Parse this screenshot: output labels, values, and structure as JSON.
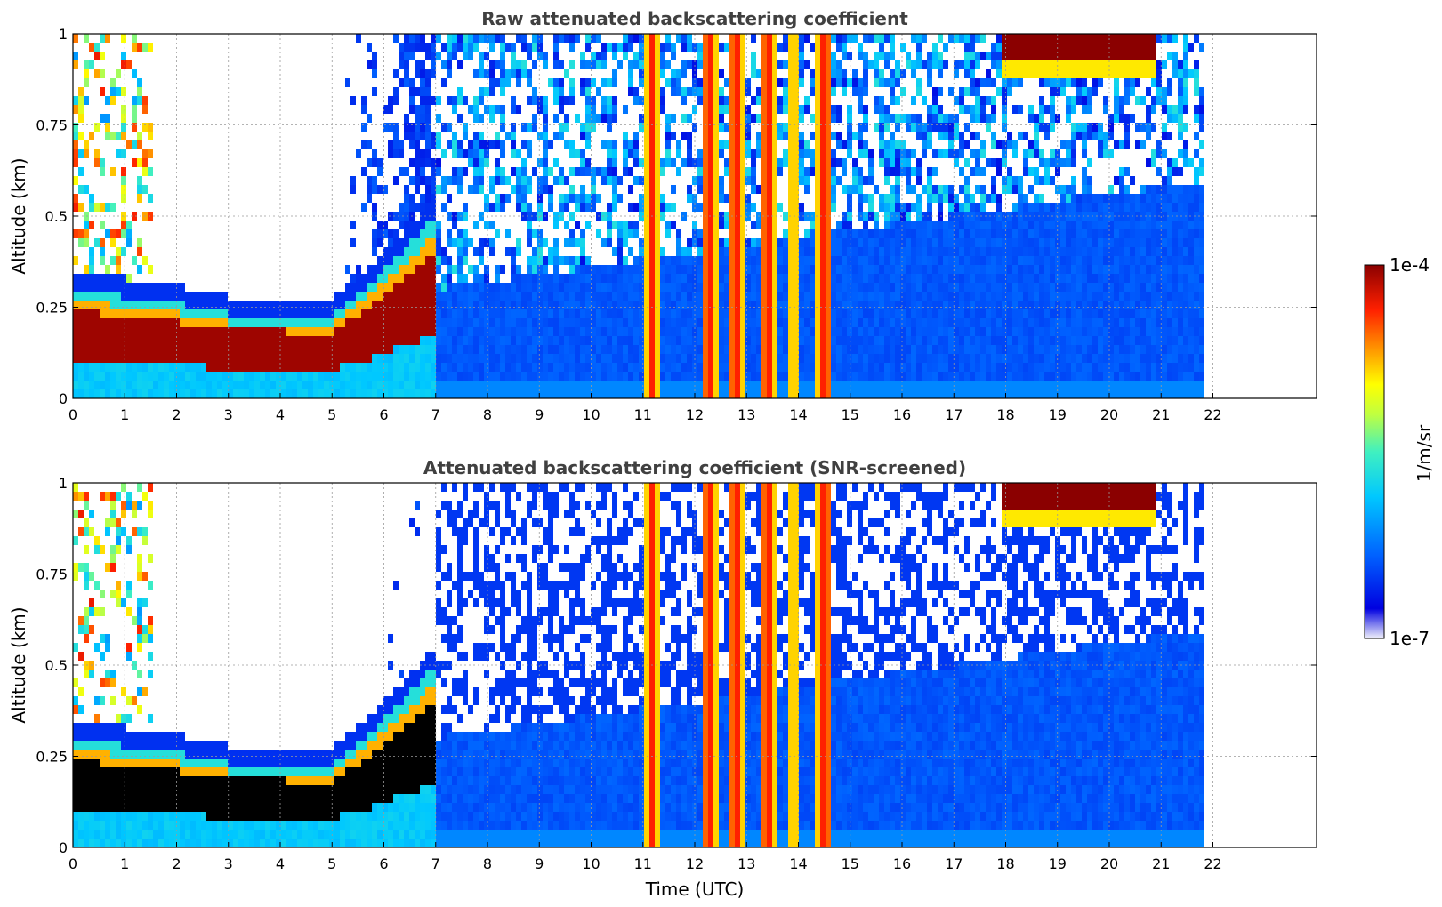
{
  "chart_data": [
    {
      "type": "heatmap",
      "title": "Raw attenuated backscattering coefficient",
      "xlabel": "",
      "ylabel": "Altitude (km)",
      "xlim": [
        0,
        24
      ],
      "ylim": [
        0,
        1
      ],
      "x_ticks": [
        "0",
        "1",
        "2",
        "3",
        "4",
        "5",
        "6",
        "7",
        "8",
        "9",
        "10",
        "11",
        "12",
        "13",
        "14",
        "15",
        "16",
        "17",
        "18",
        "19",
        "20",
        "21",
        "22"
      ],
      "y_ticks": [
        "0",
        "0.25",
        "0.5",
        "0.75",
        "1"
      ],
      "grid": true,
      "data_end_hour": 21.8,
      "boundary_layer_top_km": [
        {
          "t": 0,
          "z": 0.3
        },
        {
          "t": 1,
          "z": 0.28
        },
        {
          "t": 2,
          "z": 0.26
        },
        {
          "t": 3,
          "z": 0.23
        },
        {
          "t": 4,
          "z": 0.23
        },
        {
          "t": 5,
          "z": 0.22
        },
        {
          "t": 6,
          "z": 0.35
        },
        {
          "t": 7,
          "z": 0.5
        }
      ],
      "precipitation_bands_hour": [
        [
          11.0,
          11.35
        ],
        [
          12.2,
          12.5
        ],
        [
          12.7,
          13.0
        ],
        [
          13.3,
          13.6
        ],
        [
          13.8,
          14.0
        ],
        [
          14.3,
          14.6
        ]
      ],
      "upper_cloud": {
        "t_start": 17.9,
        "t_end": 20.9,
        "base_km": 0.88
      }
    },
    {
      "type": "heatmap",
      "title": "Attenuated backscattering coefficient (SNR-screened)",
      "xlabel": "Time (UTC)",
      "ylabel": "Altitude (km)",
      "xlim": [
        0,
        24
      ],
      "ylim": [
        0,
        1
      ],
      "x_ticks": [
        "0",
        "1",
        "2",
        "3",
        "4",
        "5",
        "6",
        "7",
        "8",
        "9",
        "10",
        "11",
        "12",
        "13",
        "14",
        "15",
        "16",
        "17",
        "18",
        "19",
        "20",
        "21",
        "22"
      ],
      "y_ticks": [
        "0",
        "0.25",
        "0.5",
        "0.75",
        "1"
      ],
      "grid": true,
      "data_end_hour": 21.8
    }
  ],
  "colorbar": {
    "label": "1/m/sr",
    "max_label": "1e-4",
    "min_label": "1e-7",
    "scale": "log",
    "colors": [
      "#f0f0fa",
      "#0000e0",
      "#0060ff",
      "#00c8ff",
      "#40f0c0",
      "#c0ff40",
      "#ffff00",
      "#ff9000",
      "#ff2000",
      "#8b0000"
    ]
  }
}
